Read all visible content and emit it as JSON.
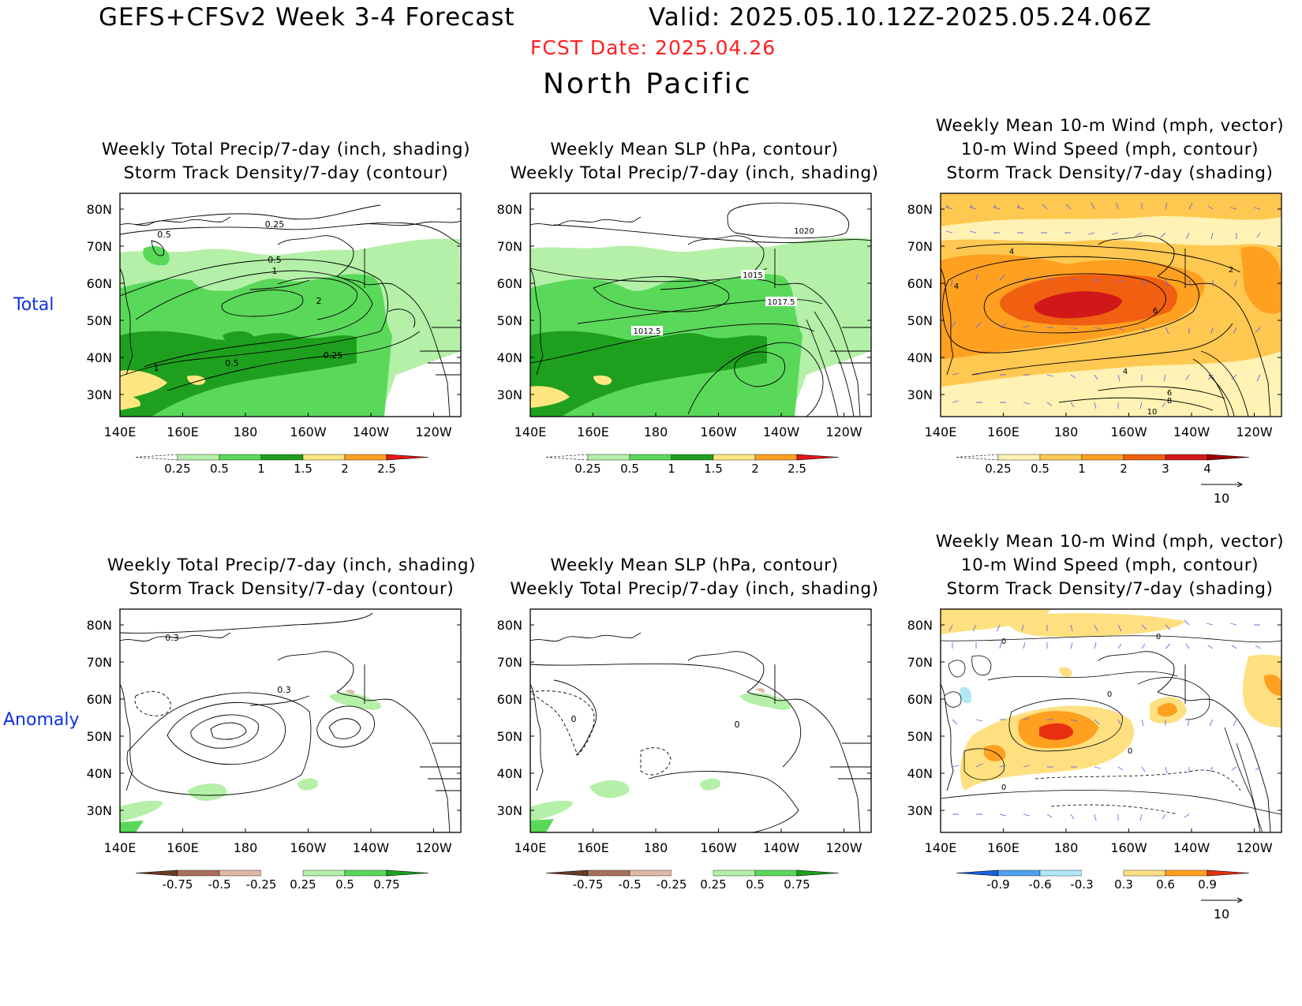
{
  "header": {
    "title": "GEFS+CFSv2 Week 3-4 Forecast",
    "valid": "Valid: 2025.05.10.12Z-2025.05.24.06Z",
    "fcst_date": "FCST Date: 2025.04.26",
    "region": "North Pacific"
  },
  "rows": {
    "total": "Total",
    "anomaly": "Anomaly"
  },
  "axes": {
    "lat": [
      "80N",
      "70N",
      "60N",
      "50N",
      "40N",
      "30N"
    ],
    "lon": [
      "140E",
      "160E",
      "180",
      "160W",
      "140W",
      "120W"
    ]
  },
  "titles": {
    "precip_storm": [
      "Weekly Total Precip/7-day (inch, shading)",
      "Storm Track Density/7-day (contour)"
    ],
    "slp_precip": [
      "Weekly Mean SLP (hPa, contour)",
      "Weekly Total Precip/7-day (inch, shading)"
    ],
    "wind_storm": [
      "Weekly Mean 10-m Wind (mph, vector)",
      "10-m Wind Speed (mph, contour)",
      "Storm Track Density/7-day (shading)"
    ]
  },
  "colorbars": {
    "precip_total": {
      "labels": [
        "0.25",
        "0.5",
        "1",
        "1.5",
        "2",
        "2.5"
      ],
      "colors": [
        "#ffffff",
        "#b4f0a8",
        "#5ad85a",
        "#1ea01e",
        "#ffe680",
        "#ffa020",
        "#e81818"
      ]
    },
    "storm_total": {
      "labels": [
        "0.25",
        "0.5",
        "1",
        "2",
        "3",
        "4"
      ],
      "colors": [
        "#ffffff",
        "#fff2b4",
        "#ffc850",
        "#ffa020",
        "#f06010",
        "#d01818",
        "#a00000"
      ]
    },
    "precip_anom": {
      "labels": [
        "-0.75",
        "-0.5",
        "-0.25",
        "0.25",
        "0.5",
        "0.75"
      ],
      "colors": [
        "#6a3a28",
        "#a8705a",
        "#e0b8a8",
        "#ffffff",
        "#b4f0a8",
        "#5ad85a",
        "#1ea01e"
      ]
    },
    "storm_anom": {
      "labels": [
        "-0.9",
        "-0.6",
        "-0.3",
        "0.3",
        "0.6",
        "0.9"
      ],
      "colors": [
        "#1a60e0",
        "#50a0f0",
        "#b0e8f8",
        "#ffffff",
        "#ffe080",
        "#ffa020",
        "#e83010"
      ]
    }
  },
  "contour_labels": {
    "p1": [
      "0.5",
      "0.25",
      "0.5",
      "1",
      "2",
      "1",
      "0.5",
      "0.25"
    ],
    "p2": [
      "1020",
      "1015",
      "1017.5",
      "1012.5"
    ],
    "p3": [
      "4",
      "4",
      "6",
      "4",
      "2",
      "6",
      "8",
      "10"
    ],
    "p4": [
      "0.3",
      "0.3"
    ],
    "p5": [
      "0",
      "0"
    ],
    "p6": [
      "0",
      "0",
      "0",
      "0",
      "0"
    ]
  },
  "vector_ref": "10",
  "colors": {
    "title_red": "#ff2020",
    "row_label_blue": "#1030e0",
    "vector_color": "#6a6ae6"
  }
}
